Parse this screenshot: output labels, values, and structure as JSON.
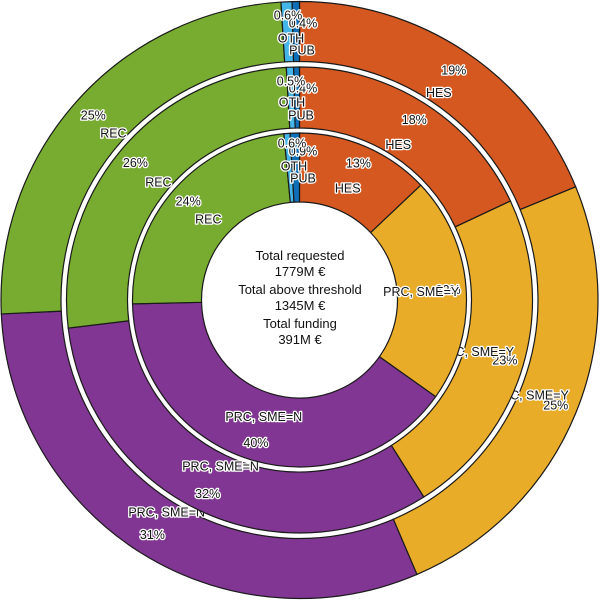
{
  "chart_data": {
    "type": "sunburst",
    "title": "",
    "legend_position": "none",
    "background_color": "#ffffff",
    "outline_color": "#1a1a1a",
    "label_color": "#141414",
    "categories": [
      {
        "key": "hes",
        "label": "HES",
        "color": "#D4581F"
      },
      {
        "key": "prc-sme-y",
        "label": "PRC, SME=Y",
        "color": "#E9AC28"
      },
      {
        "key": "prc-sme-n",
        "label": "PRC, SME=N",
        "color": "#803692"
      },
      {
        "key": "rec",
        "label": "REC",
        "color": "#77AC30"
      },
      {
        "key": "oth",
        "label": "OTH",
        "color": "#44B5E9"
      },
      {
        "key": "pub",
        "label": "PUB",
        "color": "#0F6FB6"
      }
    ],
    "rings": [
      {
        "ring": "outer",
        "title": "Total requested",
        "total": "1779M €",
        "values_pct": [
          19,
          25,
          31,
          25,
          0.6,
          0.4
        ],
        "pct_labels": [
          "19%",
          "25%",
          "31%",
          "25%",
          "0.6%",
          "0.4%"
        ]
      },
      {
        "ring": "middle",
        "title": "Total above threshold",
        "total": "1345M €",
        "values_pct": [
          18,
          23,
          32,
          26,
          0.5,
          0.4
        ],
        "pct_labels": [
          "18%",
          "23%",
          "32%",
          "26%",
          "0.5%",
          "0.4%"
        ]
      },
      {
        "ring": "inner",
        "title": "Total funding",
        "total": "391M €",
        "values_pct": [
          13,
          22,
          40,
          24,
          0.6,
          0.9
        ],
        "pct_labels": [
          "13%",
          "22%",
          "40%",
          "24%",
          "0.6%",
          "0.9%"
        ]
      }
    ],
    "center_text": [
      {
        "label": "Total requested",
        "value": "1779M €"
      },
      {
        "label": "Total above threshold",
        "value": "1345M €"
      },
      {
        "label": "Total funding",
        "value": "391M €"
      }
    ]
  }
}
